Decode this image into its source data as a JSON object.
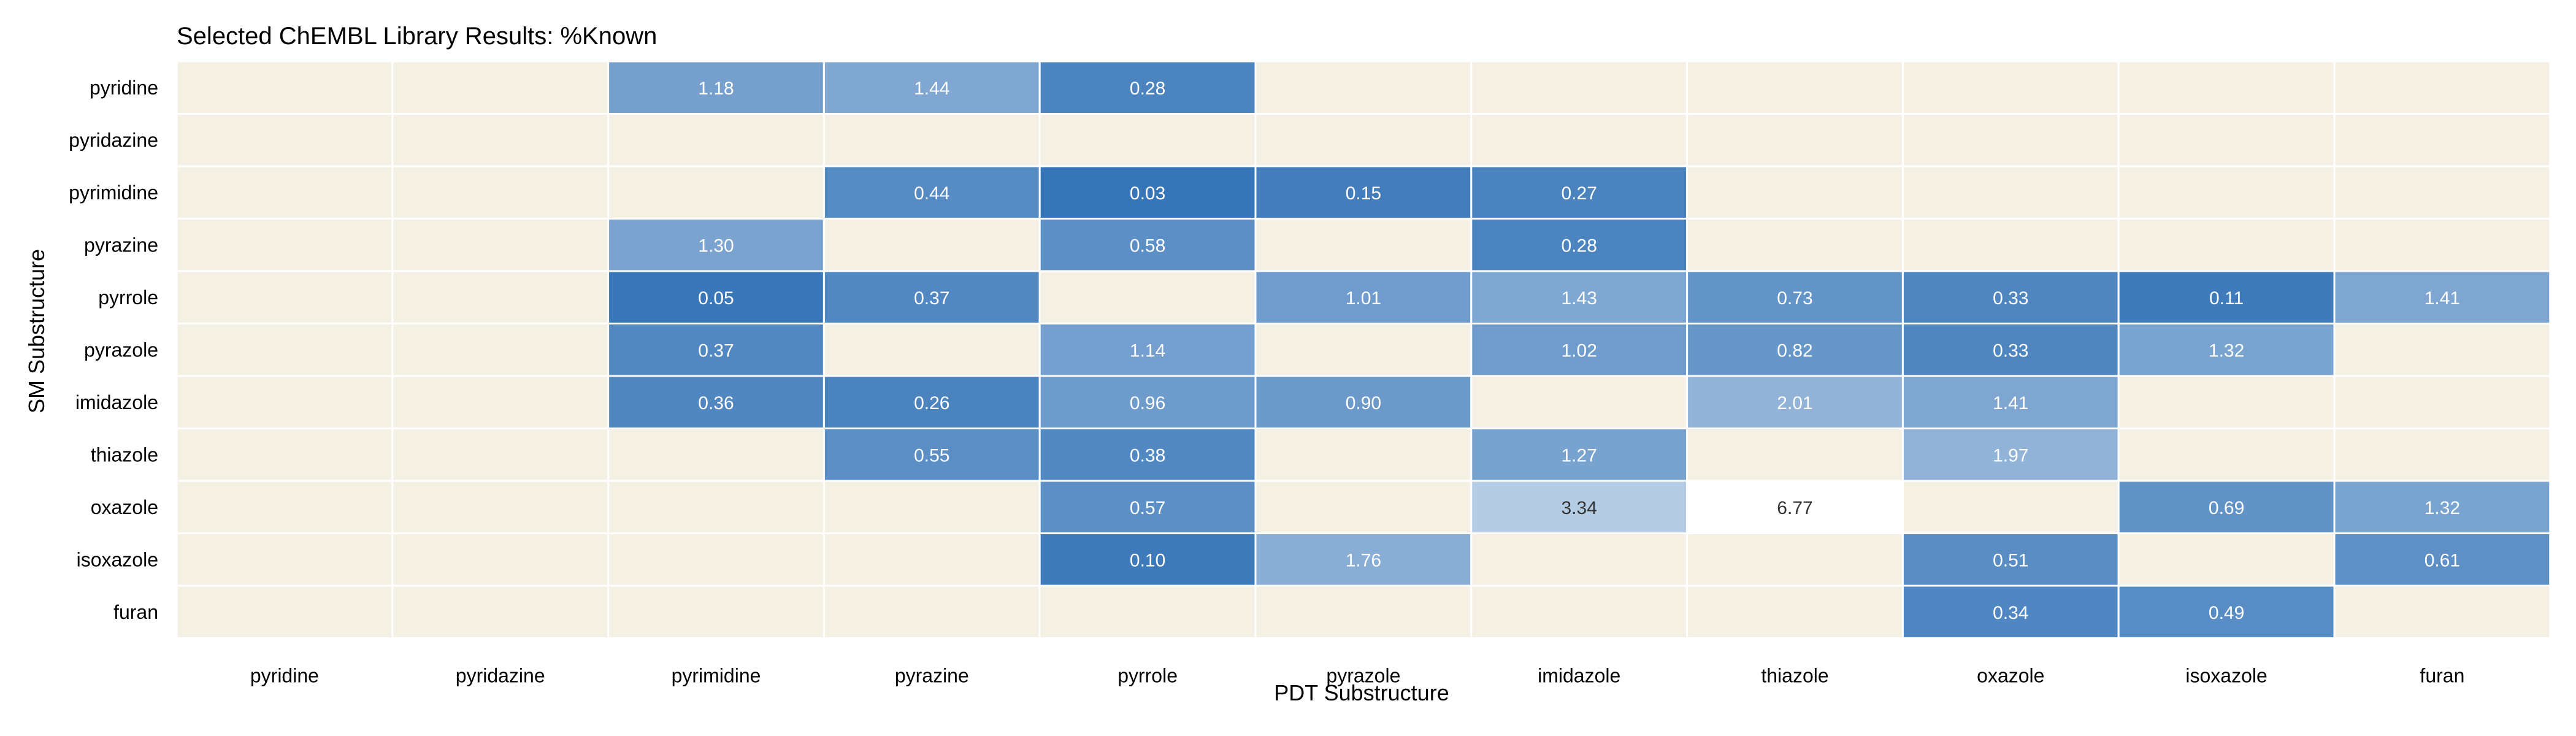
{
  "chart_data": {
    "type": "heatmap",
    "title": "Selected ChEMBL Library Results: %Known",
    "xlabel": "PDT Substructure",
    "ylabel": "SM Substructure",
    "x_categories": [
      "pyridine",
      "pyridazine",
      "pyrimidine",
      "pyrazine",
      "pyrrole",
      "pyrazole",
      "imidazole",
      "thiazole",
      "oxazole",
      "isoxazole",
      "furan"
    ],
    "y_categories": [
      "pyridine",
      "pyridazine",
      "pyrimidine",
      "pyrazine",
      "pyrrole",
      "pyrazole",
      "imidazole",
      "thiazole",
      "oxazole",
      "isoxazole",
      "furan"
    ],
    "values": [
      [
        null,
        null,
        1.18,
        1.44,
        0.28,
        null,
        null,
        null,
        null,
        null,
        null
      ],
      [
        null,
        null,
        null,
        null,
        null,
        null,
        null,
        null,
        null,
        null,
        null
      ],
      [
        null,
        null,
        null,
        0.44,
        0.03,
        0.15,
        0.27,
        null,
        null,
        null,
        null
      ],
      [
        null,
        null,
        1.3,
        null,
        0.58,
        null,
        0.28,
        null,
        null,
        null,
        null
      ],
      [
        null,
        null,
        0.05,
        0.37,
        null,
        1.01,
        1.43,
        0.73,
        0.33,
        0.11,
        1.41
      ],
      [
        null,
        null,
        0.37,
        null,
        1.14,
        null,
        1.02,
        0.82,
        0.33,
        1.32,
        null
      ],
      [
        null,
        null,
        0.36,
        0.26,
        0.96,
        0.9,
        null,
        2.01,
        1.41,
        null,
        null
      ],
      [
        null,
        null,
        null,
        0.55,
        0.38,
        null,
        1.27,
        null,
        1.97,
        null,
        null
      ],
      [
        null,
        null,
        null,
        null,
        0.57,
        null,
        3.34,
        6.77,
        null,
        0.69,
        1.32
      ],
      [
        null,
        null,
        null,
        null,
        0.1,
        1.76,
        null,
        null,
        0.51,
        null,
        0.61
      ],
      [
        null,
        null,
        null,
        null,
        null,
        null,
        null,
        null,
        0.34,
        0.49,
        null
      ]
    ],
    "value_format": "0.00",
    "colors": {
      "missing": "#f5f0e4",
      "low": "#2f70b5",
      "high": "#ffffff",
      "cell_border": "#ffffff",
      "label_dark": "#ffffff",
      "label_light": "#333333"
    },
    "color_range": [
      0,
      6.77
    ],
    "grid": false,
    "legend": "none"
  }
}
